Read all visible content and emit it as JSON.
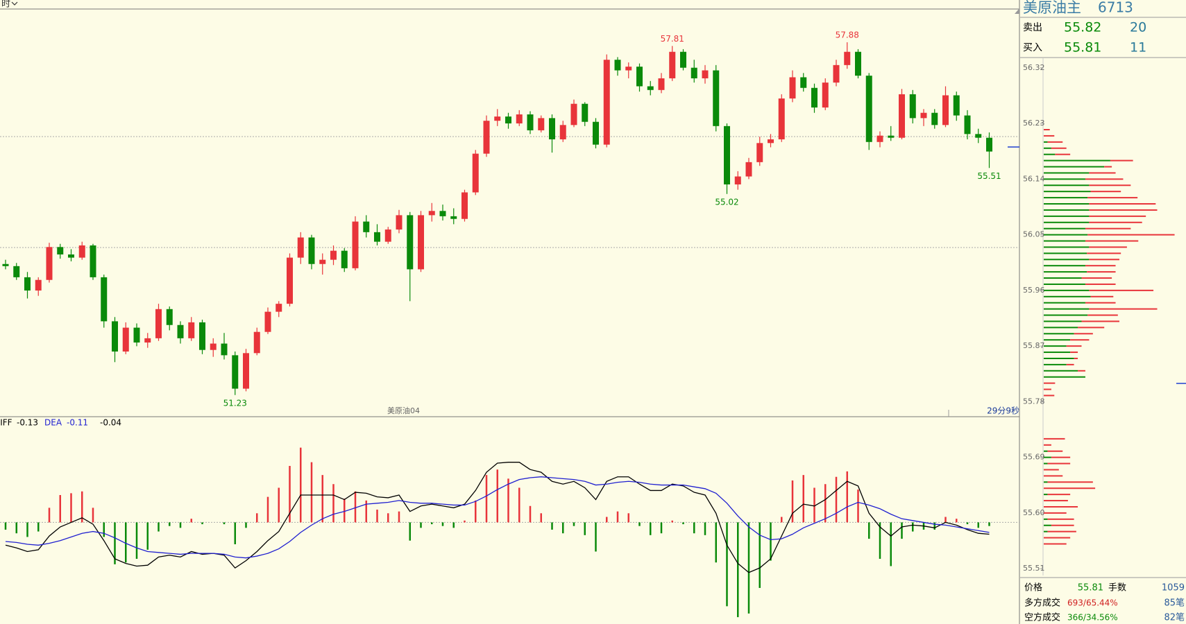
{
  "header": {
    "period": "时"
  },
  "footer": {
    "instrument": "美原油04",
    "countdown": "29分9秒"
  },
  "chart_data": [
    {
      "type": "candlestick",
      "up_color": "#e8343a",
      "down_color": "#0a8a0a",
      "ylim": [
        50.9,
        58.35
      ],
      "annotations": [
        57.81,
        57.88,
        55.02,
        51.23,
        55.51
      ],
      "open": [
        53.7,
        53.66,
        53.45,
        53.2,
        53.4,
        54.02,
        53.88,
        53.82,
        54.05,
        53.45,
        52.62,
        52.05,
        52.5,
        52.22,
        52.3,
        52.85,
        52.55,
        52.3,
        52.6,
        52.08,
        52.2,
        51.98,
        51.35,
        52.02,
        52.42,
        52.8,
        52.95,
        53.82,
        54.2,
        53.7,
        53.78,
        53.95,
        53.62,
        54.5,
        54.3,
        54.12,
        54.35,
        54.62,
        53.6,
        54.62,
        54.7,
        54.6,
        54.55,
        55.05,
        55.78,
        56.4,
        56.48,
        56.35,
        56.52,
        56.22,
        56.45,
        56.05,
        56.32,
        56.72,
        56.38,
        55.95,
        57.55,
        57.35,
        57.42,
        57.05,
        56.98,
        57.2,
        57.7,
        57.4,
        57.2,
        57.35,
        56.3,
        55.2,
        55.35,
        55.62,
        55.98,
        56.05,
        56.82,
        57.22,
        57.02,
        56.65,
        57.12,
        57.45,
        57.7,
        57.25,
        56.0,
        56.12,
        56.08,
        56.9,
        56.45,
        56.55,
        56.32,
        56.88,
        56.5,
        56.15,
        56.08
      ],
      "high": [
        53.78,
        53.72,
        53.55,
        53.45,
        54.1,
        54.08,
        53.98,
        54.12,
        54.08,
        53.5,
        52.7,
        52.6,
        52.58,
        52.4,
        52.95,
        52.9,
        52.62,
        52.7,
        52.65,
        52.3,
        52.4,
        52.05,
        52.1,
        52.5,
        52.88,
        53.0,
        53.9,
        54.3,
        54.25,
        53.9,
        54.05,
        54.0,
        54.6,
        54.62,
        54.45,
        54.4,
        54.72,
        54.68,
        54.7,
        54.85,
        54.82,
        54.75,
        55.1,
        55.85,
        56.5,
        56.62,
        56.55,
        56.6,
        56.58,
        56.5,
        56.52,
        56.4,
        56.8,
        56.75,
        56.45,
        57.65,
        57.6,
        57.5,
        57.48,
        57.15,
        57.3,
        57.81,
        57.75,
        57.55,
        57.45,
        57.45,
        56.35,
        55.45,
        55.7,
        56.1,
        56.15,
        56.9,
        57.35,
        57.3,
        57.1,
        57.2,
        57.55,
        57.88,
        57.75,
        57.3,
        56.2,
        56.3,
        57.0,
        56.98,
        56.62,
        56.62,
        57.05,
        56.95,
        56.6,
        56.25,
        56.18
      ],
      "low": [
        53.6,
        53.4,
        53.05,
        53.1,
        53.35,
        53.8,
        53.75,
        53.78,
        53.4,
        52.5,
        51.85,
        52.0,
        52.15,
        52.12,
        52.25,
        52.45,
        52.2,
        52.25,
        52.0,
        51.95,
        51.9,
        51.23,
        51.3,
        51.98,
        52.38,
        52.7,
        52.9,
        53.7,
        53.6,
        53.5,
        53.68,
        53.55,
        53.58,
        54.2,
        54.05,
        54.08,
        54.28,
        53.0,
        53.55,
        54.5,
        54.52,
        54.45,
        54.5,
        55.0,
        55.72,
        56.3,
        56.25,
        56.3,
        56.15,
        56.18,
        55.8,
        56.0,
        56.28,
        56.3,
        55.88,
        55.9,
        57.25,
        57.2,
        56.95,
        56.88,
        56.92,
        57.15,
        57.35,
        57.12,
        57.1,
        56.2,
        55.02,
        55.1,
        55.3,
        55.55,
        55.9,
        56.0,
        56.75,
        56.95,
        56.55,
        56.6,
        57.05,
        57.38,
        57.2,
        55.85,
        55.9,
        56.02,
        56.05,
        56.35,
        56.3,
        56.25,
        56.28,
        56.4,
        56.05,
        55.98,
        55.51
      ],
      "close": [
        53.66,
        53.45,
        53.2,
        53.4,
        54.02,
        53.88,
        53.82,
        54.05,
        53.45,
        52.62,
        52.05,
        52.5,
        52.22,
        52.3,
        52.85,
        52.55,
        52.3,
        52.6,
        52.08,
        52.2,
        51.98,
        51.35,
        52.02,
        52.42,
        52.8,
        52.95,
        53.82,
        54.2,
        53.7,
        53.78,
        53.95,
        53.62,
        54.5,
        54.3,
        54.12,
        54.35,
        54.62,
        53.6,
        54.62,
        54.7,
        54.6,
        54.55,
        55.05,
        55.78,
        56.4,
        56.48,
        56.35,
        56.52,
        56.22,
        56.45,
        56.05,
        56.32,
        56.72,
        56.38,
        55.95,
        57.55,
        57.35,
        57.42,
        57.05,
        56.98,
        57.2,
        57.7,
        57.4,
        57.2,
        57.35,
        56.3,
        55.2,
        55.35,
        55.62,
        55.98,
        56.05,
        56.82,
        57.22,
        57.02,
        56.65,
        57.12,
        57.45,
        57.7,
        57.25,
        56.0,
        56.12,
        56.08,
        56.9,
        56.45,
        56.55,
        56.32,
        56.88,
        56.5,
        56.15,
        56.08,
        55.82
      ]
    },
    {
      "type": "macd",
      "ylim": [
        -1.1,
        1.0
      ],
      "series": [
        {
          "name": "DIFF",
          "color": "#000000",
          "last": -0.13,
          "values": [
            -0.25,
            -0.28,
            -0.32,
            -0.3,
            -0.15,
            -0.05,
            0.0,
            0.05,
            -0.02,
            -0.2,
            -0.4,
            -0.45,
            -0.48,
            -0.47,
            -0.38,
            -0.36,
            -0.38,
            -0.32,
            -0.35,
            -0.34,
            -0.36,
            -0.5,
            -0.42,
            -0.32,
            -0.2,
            -0.1,
            0.1,
            0.3,
            0.3,
            0.3,
            0.3,
            0.25,
            0.33,
            0.32,
            0.28,
            0.27,
            0.3,
            0.12,
            0.18,
            0.2,
            0.18,
            0.16,
            0.2,
            0.35,
            0.55,
            0.65,
            0.66,
            0.66,
            0.58,
            0.55,
            0.45,
            0.42,
            0.45,
            0.38,
            0.25,
            0.45,
            0.5,
            0.5,
            0.42,
            0.35,
            0.35,
            0.42,
            0.4,
            0.33,
            0.3,
            0.1,
            -0.25,
            -0.45,
            -0.55,
            -0.5,
            -0.4,
            -0.15,
            0.1,
            0.2,
            0.18,
            0.25,
            0.35,
            0.45,
            0.4,
            0.1,
            -0.05,
            -0.15,
            -0.05,
            -0.03,
            -0.04,
            -0.06,
            0.0,
            -0.03,
            -0.08,
            -0.12,
            -0.13
          ]
        },
        {
          "name": "DEA",
          "color": "#1f1fd0",
          "last": -0.11,
          "values": [
            -0.21,
            -0.22,
            -0.24,
            -0.25,
            -0.23,
            -0.2,
            -0.16,
            -0.12,
            -0.1,
            -0.12,
            -0.17,
            -0.23,
            -0.28,
            -0.32,
            -0.33,
            -0.34,
            -0.35,
            -0.34,
            -0.34,
            -0.34,
            -0.35,
            -0.38,
            -0.39,
            -0.37,
            -0.34,
            -0.29,
            -0.21,
            -0.11,
            -0.03,
            0.04,
            0.09,
            0.12,
            0.16,
            0.2,
            0.21,
            0.22,
            0.24,
            0.22,
            0.21,
            0.21,
            0.2,
            0.19,
            0.19,
            0.23,
            0.29,
            0.36,
            0.42,
            0.47,
            0.49,
            0.5,
            0.49,
            0.48,
            0.47,
            0.45,
            0.41,
            0.42,
            0.44,
            0.45,
            0.44,
            0.42,
            0.41,
            0.41,
            0.41,
            0.39,
            0.37,
            0.32,
            0.21,
            0.07,
            -0.05,
            -0.14,
            -0.19,
            -0.18,
            -0.13,
            -0.06,
            -0.01,
            0.04,
            0.1,
            0.17,
            0.22,
            0.19,
            0.15,
            0.09,
            0.04,
            0.02,
            0.0,
            -0.02,
            -0.03,
            -0.05,
            -0.07,
            -0.09,
            -0.11
          ]
        }
      ],
      "histogram": {
        "last": -0.04,
        "up_color": "#e8343a",
        "down_color": "#0a8a0a",
        "values": [
          -0.08,
          -0.12,
          -0.16,
          -0.1,
          0.16,
          0.3,
          0.32,
          0.34,
          0.16,
          -0.16,
          -0.46,
          -0.44,
          -0.4,
          -0.3,
          -0.1,
          -0.04,
          -0.06,
          0.04,
          -0.02,
          0.0,
          -0.02,
          -0.24,
          -0.06,
          0.1,
          0.28,
          0.38,
          0.62,
          0.82,
          0.66,
          0.52,
          0.42,
          0.26,
          0.34,
          0.24,
          0.14,
          0.1,
          0.12,
          -0.2,
          -0.06,
          -0.02,
          -0.04,
          -0.06,
          0.02,
          0.24,
          0.52,
          0.58,
          0.48,
          0.38,
          0.18,
          0.1,
          -0.08,
          -0.12,
          -0.04,
          -0.14,
          -0.32,
          0.06,
          0.12,
          0.1,
          -0.04,
          -0.14,
          -0.12,
          0.02,
          -0.02,
          -0.12,
          -0.14,
          -0.44,
          -0.92,
          -1.04,
          -1.0,
          -0.72,
          -0.42,
          0.06,
          0.46,
          0.52,
          0.38,
          0.42,
          0.5,
          0.56,
          0.36,
          -0.18,
          -0.4,
          -0.48,
          -0.18,
          -0.1,
          -0.08,
          -0.08,
          0.06,
          0.04,
          -0.02,
          -0.06,
          -0.04
        ]
      }
    },
    {
      "type": "profile",
      "orientation": "horizontal",
      "ylim": [
        55.49,
        56.34
      ],
      "yticks": [
        56.32,
        56.23,
        56.14,
        56.05,
        55.96,
        55.87,
        55.78,
        55.69,
        {
          "value": 55.6,
          "label": "55.60"
        },
        55.51
      ],
      "y": [
        56.22,
        56.21,
        56.2,
        56.19,
        56.18,
        56.17,
        56.16,
        56.15,
        56.14,
        56.13,
        56.12,
        56.11,
        56.1,
        56.09,
        56.08,
        56.07,
        56.06,
        56.05,
        56.04,
        56.03,
        56.02,
        56.01,
        56.0,
        55.99,
        55.98,
        55.97,
        55.96,
        55.95,
        55.94,
        55.93,
        55.92,
        55.91,
        55.9,
        55.89,
        55.88,
        55.87,
        55.86,
        55.85,
        55.84,
        55.83,
        55.82,
        55.81,
        55.8,
        55.79,
        55.72,
        55.71,
        55.7,
        55.69,
        55.68,
        55.67,
        55.66,
        55.65,
        55.64,
        55.63,
        55.62,
        55.61,
        55.6,
        55.59,
        55.58,
        55.57,
        55.56,
        55.55
      ],
      "series": [
        {
          "color": "#0a8a0a",
          "values": [
            0,
            0,
            5,
            10,
            15,
            88,
            80,
            60,
            55,
            60,
            62,
            58,
            60,
            60,
            60,
            60,
            55,
            58,
            55,
            60,
            57,
            60,
            55,
            57,
            50,
            55,
            60,
            62,
            55,
            60,
            58,
            50,
            45,
            40,
            35,
            30,
            35,
            40,
            30,
            45,
            55,
            0,
            0,
            0,
            0,
            0,
            5,
            10,
            5,
            0,
            0,
            5,
            0,
            5,
            0,
            0,
            0,
            5,
            10,
            5,
            0,
            0
          ]
        },
        {
          "color": "#e8343a",
          "values": [
            8,
            14,
            20,
            20,
            20,
            30,
            10,
            35,
            50,
            55,
            40,
            66,
            88,
            90,
            75,
            70,
            60,
            115,
            70,
            50,
            45,
            40,
            40,
            38,
            40,
            40,
            85,
            30,
            40,
            90,
            40,
            50,
            35,
            25,
            25,
            20,
            10,
            5,
            10,
            10,
            0,
            15,
            10,
            14,
            28,
            10,
            20,
            25,
            30,
            20,
            25,
            60,
            68,
            30,
            32,
            45,
            30,
            35,
            30,
            38,
            35,
            30
          ]
        }
      ]
    }
  ],
  "quote_panel": {
    "name": "美原油主",
    "code": "6713",
    "ask": {
      "label": "卖出",
      "price": 55.82,
      "size": 20
    },
    "bid": {
      "label": "买入",
      "price": 55.81,
      "size": 11
    },
    "stats": {
      "price_label": "价格",
      "price": 55.81,
      "volume_label": "手数",
      "volume": 1059,
      "rows": [
        {
          "label": "多方成交",
          "value": "693/65.44%",
          "count": "85笔"
        },
        {
          "label": "空方成交",
          "value": "366/34.56%",
          "count": "82笔"
        }
      ]
    }
  }
}
